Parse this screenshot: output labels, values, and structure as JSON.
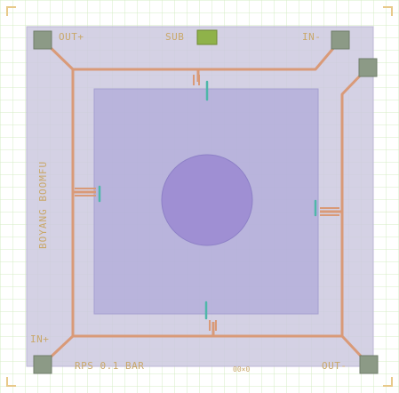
{
  "layout": {
    "pads": {
      "out_plus": "OUT+",
      "sub": "SUB",
      "in_minus": "IN-",
      "in_plus": "IN+",
      "out_minus": "OUT-"
    },
    "side_label": "BOYANG BOOMFU",
    "bottom_text": "RPS 0.1 BAR",
    "bottom_code": "00×0"
  },
  "colors": {
    "background": "#ffffff",
    "grid": "#cfe8b8",
    "chip_outer": "#cdc9df",
    "membrane": "#b2acd9",
    "center_disc": "#9f8fd3",
    "trace": "#d99a78",
    "pad": "#8c9a86",
    "pad_sub": "#8fb24a",
    "resistor": "#4fb7a9",
    "label": "#c9a86a"
  }
}
